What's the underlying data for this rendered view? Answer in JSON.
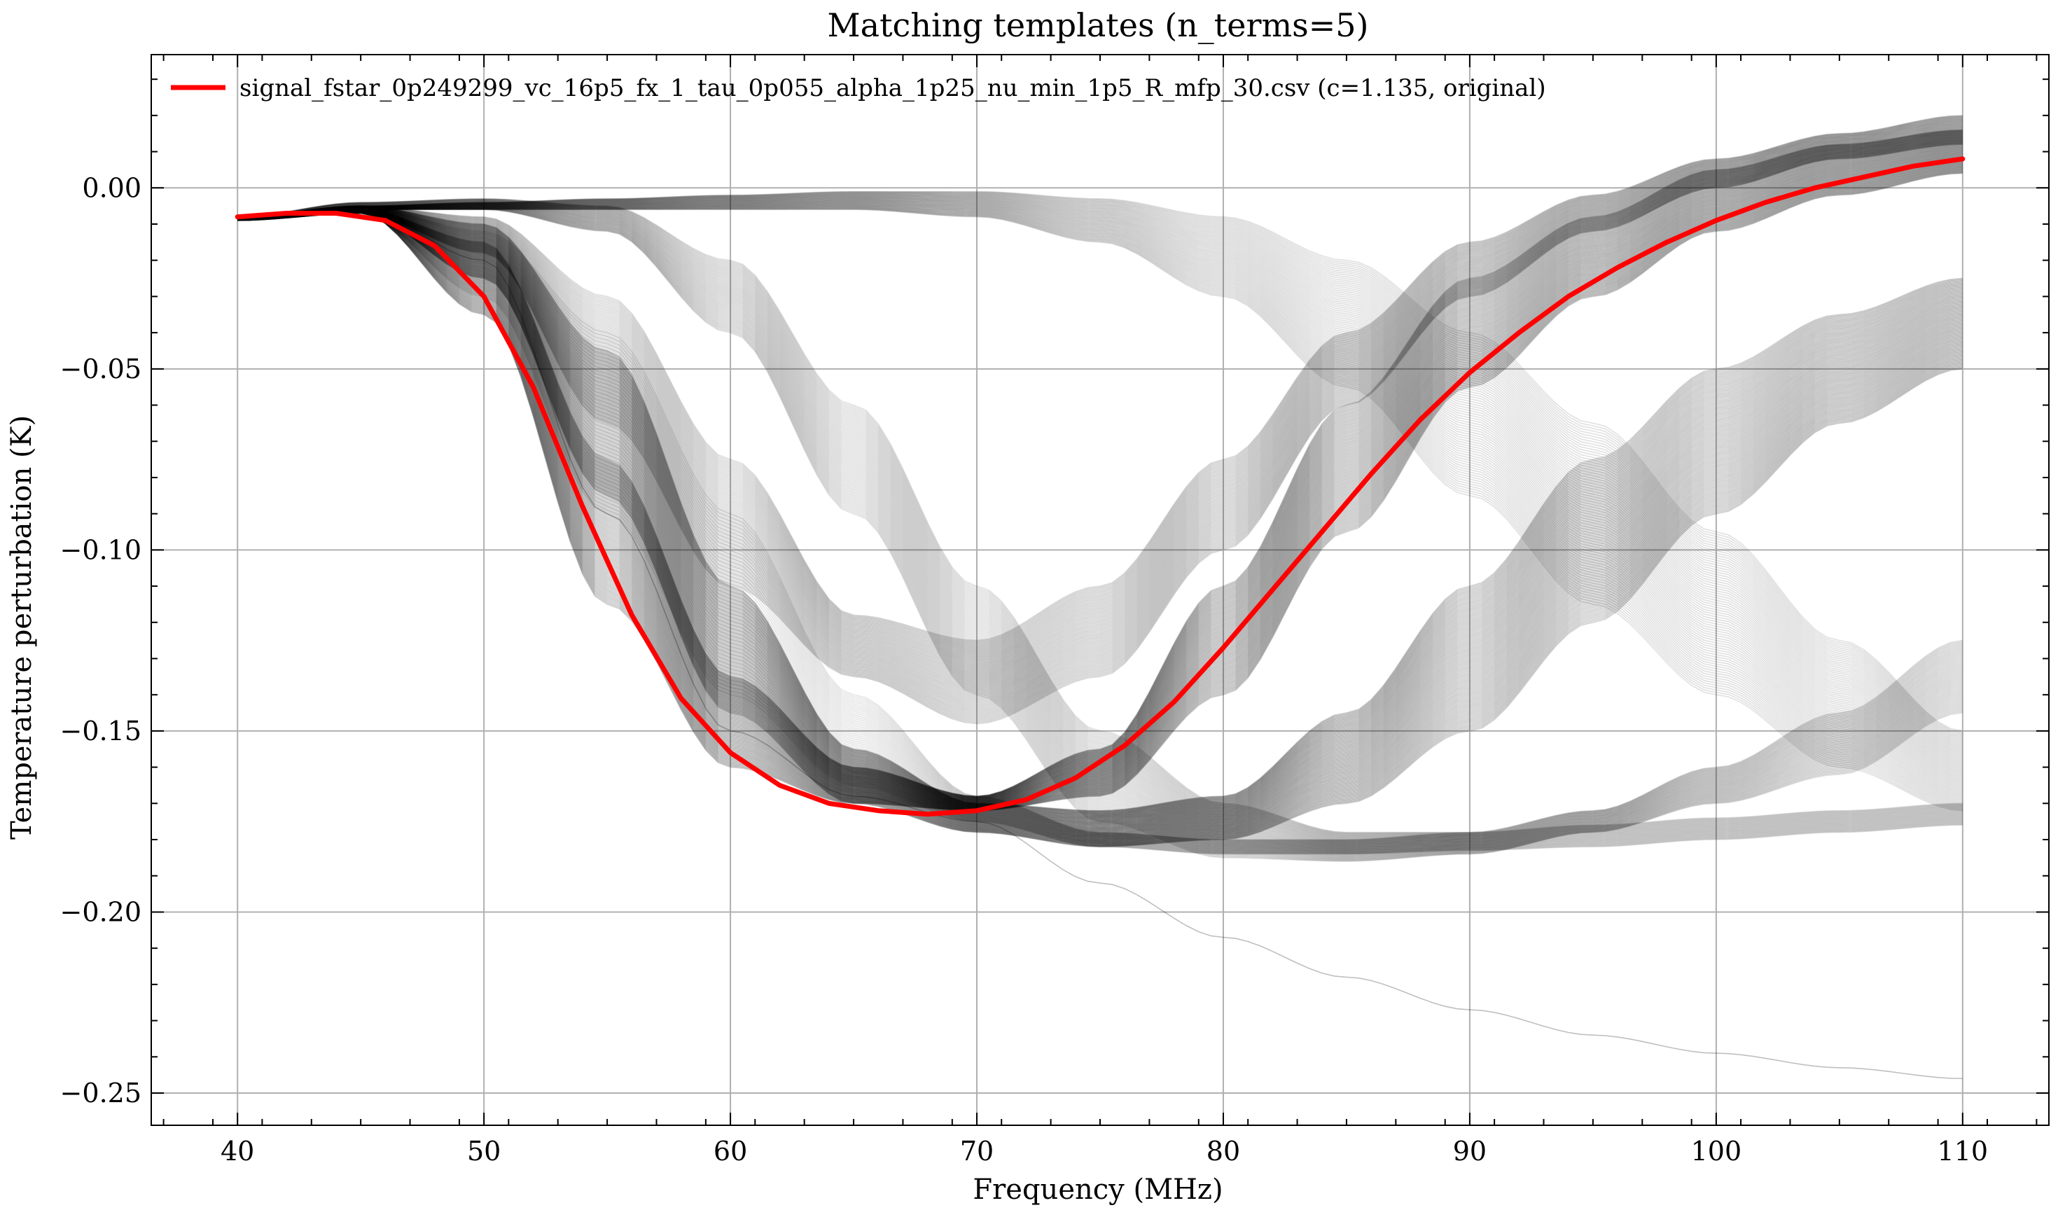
{
  "chart_data": {
    "type": "line",
    "title": "Matching templates (n_terms=5)",
    "xlabel": "Frequency (MHz)",
    "ylabel": "Temperature perturbation (K)",
    "xlim": [
      36.5,
      113.5
    ],
    "ylim": [
      -0.2589,
      0.0368
    ],
    "xticks": [
      40,
      50,
      60,
      70,
      80,
      90,
      100,
      110
    ],
    "xtick_labels": [
      "40",
      "50",
      "60",
      "70",
      "80",
      "90",
      "100",
      "110"
    ],
    "yticks": [
      0.0,
      -0.05,
      -0.1,
      -0.15,
      -0.2,
      -0.25
    ],
    "ytick_labels": [
      "0.00",
      "−0.05",
      "−0.10",
      "−0.15",
      "−0.20",
      "−0.25"
    ],
    "grid": true,
    "legend": {
      "placement": "top-left",
      "entries": [
        "signal_fstar_0p249299_vc_16p5_fx_1_tau_0p055_alpha_1p25_nu_min_1p5_R_mfp_30.csv (c=1.135, original)"
      ]
    },
    "series": [
      {
        "name": "signal_fstar_0p249299_vc_16p5_fx_1_tau_0p055_alpha_1p25_nu_min_1p5_R_mfp_30.csv (c=1.135, original)",
        "color": "#ff0000",
        "x": [
          40,
          42,
          44,
          46,
          48,
          50,
          52,
          54,
          56,
          58,
          60,
          62,
          64,
          66,
          68,
          70,
          72,
          74,
          76,
          78,
          80,
          82,
          84,
          86,
          88,
          90,
          92,
          94,
          96,
          98,
          100,
          102,
          104,
          106,
          108,
          110
        ],
        "y": [
          -0.008,
          -0.007,
          -0.007,
          -0.009,
          -0.016,
          -0.03,
          -0.055,
          -0.088,
          -0.118,
          -0.141,
          -0.156,
          -0.165,
          -0.17,
          -0.172,
          -0.173,
          -0.172,
          -0.169,
          -0.163,
          -0.154,
          -0.142,
          -0.127,
          -0.111,
          -0.095,
          -0.079,
          -0.064,
          -0.051,
          -0.04,
          -0.03,
          -0.022,
          -0.015,
          -0.009,
          -0.004,
          0.0,
          0.003,
          0.006,
          0.008
        ]
      }
    ],
    "template_bands": [
      {
        "color": "#000000",
        "count": 110,
        "opacity": 0.18,
        "x": [
          40,
          45,
          50,
          55,
          60,
          65,
          70,
          75,
          80,
          85,
          90,
          95,
          100,
          105,
          110
        ],
        "upper": [
          -0.008,
          -0.006,
          -0.015,
          -0.075,
          -0.135,
          -0.16,
          -0.168,
          -0.155,
          -0.11,
          -0.06,
          -0.025,
          -0.008,
          0.005,
          0.012,
          0.016
        ],
        "lower": [
          -0.009,
          -0.007,
          -0.035,
          -0.115,
          -0.16,
          -0.17,
          -0.172,
          -0.168,
          -0.14,
          -0.095,
          -0.055,
          -0.03,
          -0.012,
          -0.002,
          0.004
        ]
      },
      {
        "color": "#000000",
        "count": 110,
        "opacity": 0.18,
        "x": [
          40,
          45,
          50,
          55,
          60,
          65,
          70,
          75,
          80,
          85,
          90,
          95,
          100,
          105,
          110
        ],
        "upper": [
          -0.008,
          -0.005,
          -0.01,
          -0.045,
          -0.11,
          -0.155,
          -0.17,
          -0.172,
          -0.168,
          -0.145,
          -0.11,
          -0.075,
          -0.05,
          -0.035,
          -0.025
        ],
        "lower": [
          -0.009,
          -0.007,
          -0.025,
          -0.085,
          -0.145,
          -0.17,
          -0.178,
          -0.182,
          -0.18,
          -0.17,
          -0.15,
          -0.12,
          -0.09,
          -0.065,
          -0.05
        ]
      },
      {
        "color": "#000000",
        "count": 80,
        "opacity": 0.14,
        "x": [
          40,
          45,
          50,
          55,
          60,
          65,
          70,
          75,
          80,
          85,
          90,
          95,
          100,
          105,
          110
        ],
        "upper": [
          -0.008,
          -0.005,
          -0.008,
          -0.03,
          -0.075,
          -0.118,
          -0.125,
          -0.11,
          -0.075,
          -0.04,
          -0.015,
          -0.002,
          0.008,
          0.015,
          0.02
        ],
        "lower": [
          -0.009,
          -0.007,
          -0.018,
          -0.065,
          -0.11,
          -0.135,
          -0.148,
          -0.135,
          -0.1,
          -0.06,
          -0.03,
          -0.012,
          0.0,
          0.008,
          0.012
        ]
      },
      {
        "color": "#000000",
        "count": 70,
        "opacity": 0.12,
        "x": [
          40,
          45,
          50,
          55,
          60,
          65,
          70,
          75,
          80,
          85,
          90,
          95,
          100,
          105,
          110
        ],
        "upper": [
          -0.008,
          -0.005,
          -0.004,
          -0.003,
          -0.002,
          -0.001,
          -0.001,
          -0.003,
          -0.008,
          -0.02,
          -0.04,
          -0.065,
          -0.095,
          -0.125,
          -0.15
        ],
        "lower": [
          -0.009,
          -0.006,
          -0.006,
          -0.006,
          -0.006,
          -0.006,
          -0.008,
          -0.015,
          -0.03,
          -0.055,
          -0.085,
          -0.115,
          -0.14,
          -0.16,
          -0.172
        ]
      },
      {
        "color": "#000000",
        "count": 70,
        "opacity": 0.12,
        "x": [
          40,
          45,
          50,
          55,
          60,
          65,
          70,
          75,
          80,
          85,
          90,
          95,
          100,
          105,
          110
        ],
        "upper": [
          -0.008,
          -0.004,
          -0.003,
          -0.005,
          -0.02,
          -0.06,
          -0.11,
          -0.15,
          -0.17,
          -0.178,
          -0.178,
          -0.172,
          -0.16,
          -0.145,
          -0.125
        ],
        "lower": [
          -0.009,
          -0.006,
          -0.006,
          -0.012,
          -0.04,
          -0.09,
          -0.14,
          -0.175,
          -0.185,
          -0.186,
          -0.184,
          -0.178,
          -0.17,
          -0.162,
          -0.145
        ]
      },
      {
        "color": "#000000",
        "count": 50,
        "opacity": 0.1,
        "x": [
          40,
          45,
          50,
          55,
          60,
          65,
          70,
          75,
          80,
          85,
          90,
          95,
          100,
          105,
          110
        ],
        "upper": [
          -0.008,
          -0.005,
          -0.012,
          -0.04,
          -0.09,
          -0.14,
          -0.168,
          -0.178,
          -0.18,
          -0.18,
          -0.178,
          -0.176,
          -0.174,
          -0.172,
          -0.17
        ],
        "lower": [
          -0.009,
          -0.007,
          -0.03,
          -0.09,
          -0.14,
          -0.165,
          -0.175,
          -0.182,
          -0.184,
          -0.184,
          -0.183,
          -0.182,
          -0.18,
          -0.178,
          -0.176
        ]
      },
      {
        "color": "#000000",
        "count": 1,
        "opacity": 0.25,
        "x": [
          40,
          45,
          50,
          55,
          60,
          65,
          70,
          75,
          80,
          85,
          90,
          95,
          100,
          105,
          110
        ],
        "upper": [
          -0.008,
          -0.006,
          -0.02,
          -0.09,
          -0.15,
          -0.168,
          -0.175,
          -0.192,
          -0.207,
          -0.218,
          -0.227,
          -0.234,
          -0.239,
          -0.243,
          -0.246
        ],
        "lower": [
          -0.008,
          -0.006,
          -0.02,
          -0.09,
          -0.15,
          -0.168,
          -0.175,
          -0.192,
          -0.207,
          -0.218,
          -0.227,
          -0.234,
          -0.239,
          -0.243,
          -0.246
        ]
      }
    ]
  }
}
